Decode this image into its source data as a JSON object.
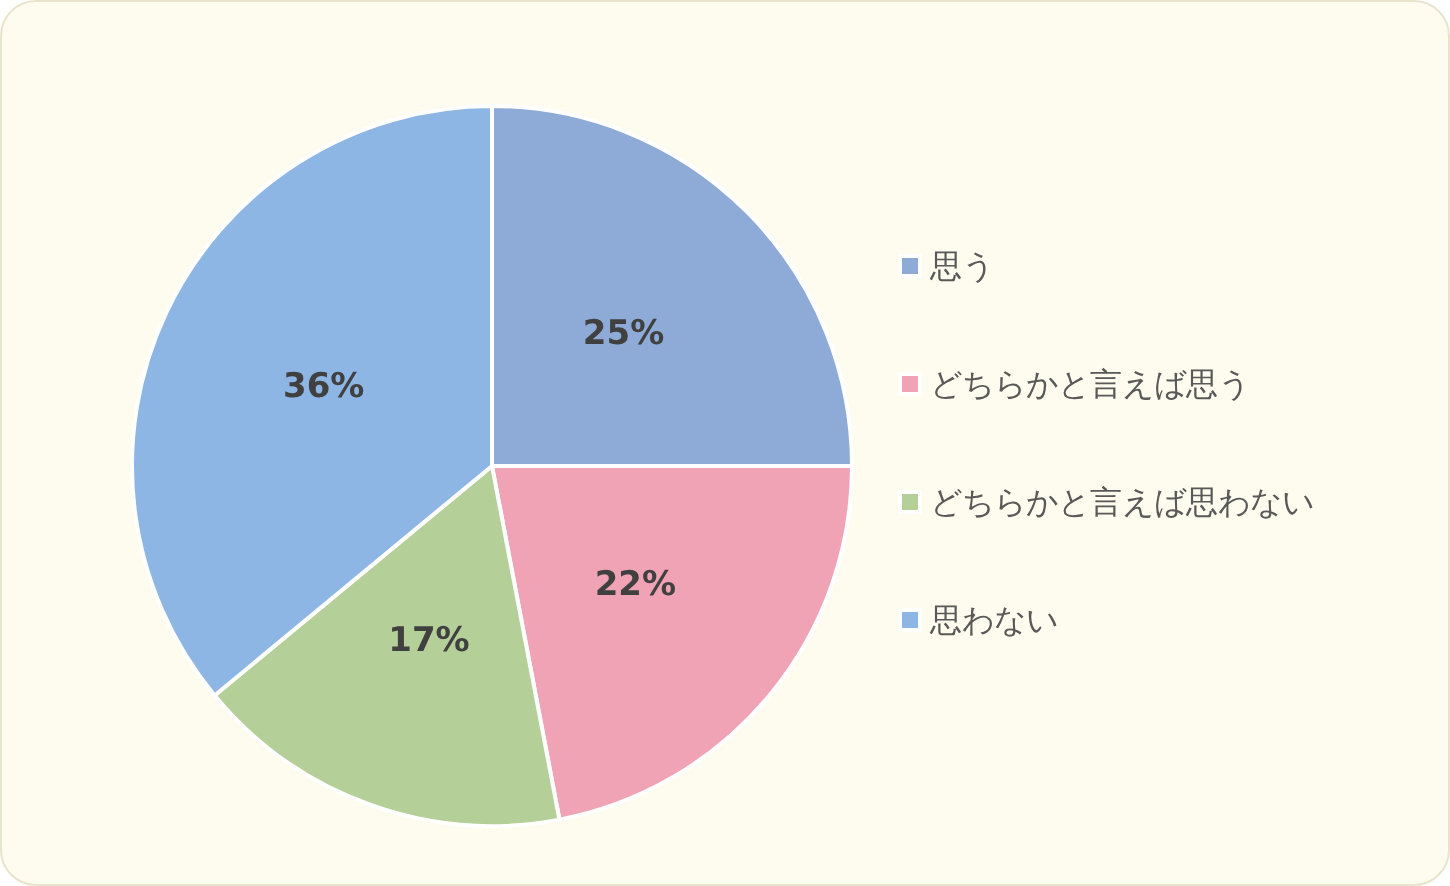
{
  "chart_data": {
    "type": "pie",
    "categories": [
      "思う",
      "どちらかと言えば思う",
      "どちらかと言えば思わない",
      "思わない"
    ],
    "values": [
      25,
      22,
      17,
      36
    ],
    "value_labels": [
      "25%",
      "22%",
      "17%",
      "36%"
    ],
    "colors": [
      "#8eaad6",
      "#f0a3b4",
      "#b5cf98",
      "#8db6e5"
    ],
    "legend": "right"
  }
}
